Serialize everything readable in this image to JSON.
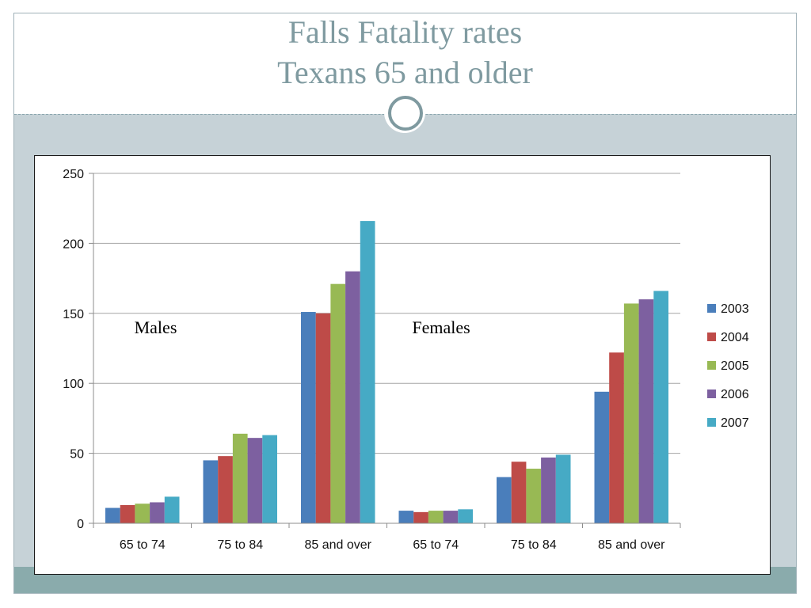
{
  "slide": {
    "title_line_1": "Falls Fatality rates",
    "title_line_2": "Texans 65 and older"
  },
  "colors": {
    "title": "#7f9aa0",
    "slide_background": "#c6d2d7",
    "bottom_band": "#8aabac"
  },
  "chart_data": {
    "type": "bar",
    "categories": [
      "65 to 74",
      "75 to 84",
      "85 and over",
      "65 to 74",
      "75 to 84",
      "85 and over"
    ],
    "group_labels": [
      {
        "text": "Males",
        "categories": [
          0,
          1,
          2
        ]
      },
      {
        "text": "Females",
        "categories": [
          3,
          4,
          5
        ]
      }
    ],
    "series": [
      {
        "name": "2003",
        "color": "#4a7ebb",
        "values": [
          11,
          45,
          151,
          9,
          33,
          94
        ]
      },
      {
        "name": "2004",
        "color": "#be4b48",
        "values": [
          13,
          48,
          150,
          8,
          44,
          122
        ]
      },
      {
        "name": "2005",
        "color": "#98b954",
        "values": [
          14,
          64,
          171,
          9,
          39,
          157
        ]
      },
      {
        "name": "2006",
        "color": "#7d60a0",
        "values": [
          15,
          61,
          180,
          9,
          47,
          160
        ]
      },
      {
        "name": "2007",
        "color": "#46aac5",
        "values": [
          19,
          63,
          216,
          10,
          49,
          166
        ]
      }
    ],
    "ylim": [
      0,
      250
    ],
    "yticks": [
      "0",
      "50",
      "100",
      "150",
      "200",
      "250"
    ],
    "grid": true,
    "legend": "right"
  }
}
